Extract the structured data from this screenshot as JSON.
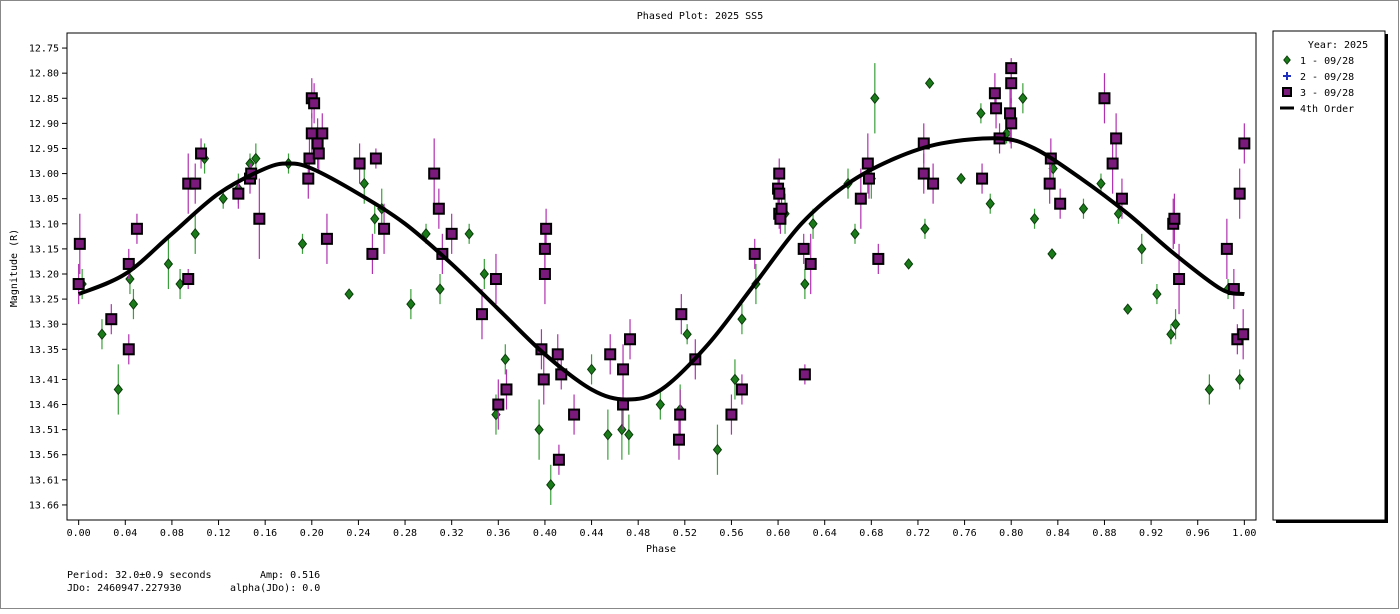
{
  "chart_data": {
    "type": "scatter",
    "title": "Phased Plot: 2025 SS5",
    "x_label": "Phase",
    "y_label": "Magnitude (R)",
    "y_inverted": true,
    "xlim": [
      -0.01,
      1.01
    ],
    "ylim": [
      12.72,
      13.69
    ],
    "xticks": [
      {
        "value": 0,
        "label": "0.00"
      },
      0.04,
      0.08,
      0.12,
      0.16,
      {
        "value": 0.2,
        "label": "0.20"
      },
      0.24,
      0.28,
      0.32,
      0.36,
      {
        "value": 0.4,
        "label": "0.40"
      },
      0.44,
      0.48,
      0.52,
      0.56,
      {
        "value": 0.6,
        "label": "0.60"
      },
      0.64,
      0.68,
      0.72,
      0.76,
      {
        "value": 0.8,
        "label": "0.80"
      },
      0.84,
      0.88,
      0.92,
      0.96,
      {
        "value": 1,
        "label": "1.00"
      }
    ],
    "yticks": [
      12.75,
      {
        "value": 12.8,
        "label": "12.80"
      },
      12.85,
      {
        "value": 12.9,
        "label": "12.90"
      },
      12.95,
      {
        "value": 13,
        "label": "13.00"
      },
      13.05,
      {
        "value": 13.1,
        "label": "13.10"
      },
      13.15,
      {
        "value": 13.2,
        "label": "13.20"
      },
      13.25,
      {
        "value": 13.3,
        "label": "13.30"
      },
      13.35,
      13.41,
      13.46,
      13.51,
      13.56,
      13.61,
      13.66
    ],
    "legend_title": "Year: 2025",
    "legend_position": "right",
    "series": [
      {
        "name": "1 - 09/28",
        "color": "#1a7a1a",
        "error_color": "#3aa03a",
        "marker": "diamond",
        "x": [
          0.003,
          0.02,
          0.034,
          0.044,
          0.047,
          0.077,
          0.087,
          0.1,
          0.108,
          0.124,
          0.137,
          0.147,
          0.152,
          0.18,
          0.192,
          0.232,
          0.245,
          0.254,
          0.26,
          0.285,
          0.298,
          0.31,
          0.335,
          0.348,
          0.358,
          0.366,
          0.395,
          0.405,
          0.44,
          0.454,
          0.466,
          0.472,
          0.499,
          0.516,
          0.522,
          0.548,
          0.563,
          0.569,
          0.581,
          0.606,
          0.623,
          0.63,
          0.66,
          0.666,
          0.68,
          0.683,
          0.712,
          0.726,
          0.73,
          0.757,
          0.774,
          0.782,
          0.796,
          0.81,
          0.82,
          0.835,
          0.836,
          0.862,
          0.877,
          0.892,
          0.9,
          0.912,
          0.925,
          0.937,
          0.941,
          0.97,
          0.986,
          0.996
        ],
        "values": [
          13.22,
          13.32,
          13.43,
          13.21,
          13.26,
          13.18,
          13.22,
          13.12,
          12.97,
          13.05,
          13.03,
          12.98,
          12.97,
          12.98,
          13.14,
          13.24,
          13.02,
          13.09,
          13.07,
          13.26,
          13.12,
          13.23,
          13.12,
          13.2,
          13.48,
          13.37,
          13.51,
          13.62,
          13.39,
          13.52,
          13.51,
          13.52,
          13.46,
          13.47,
          13.32,
          13.55,
          13.41,
          13.29,
          13.22,
          13.08,
          13.22,
          13.1,
          13.02,
          13.12,
          13.01,
          12.85,
          13.18,
          13.11,
          12.82,
          13.01,
          12.88,
          13.06,
          12.92,
          12.85,
          13.09,
          13.16,
          12.99,
          13.07,
          13.02,
          13.08,
          13.27,
          13.15,
          13.24,
          13.32,
          13.3,
          13.43,
          13.23,
          13.41
        ],
        "errors": [
          0.03,
          0.03,
          0.05,
          0.03,
          0.03,
          0.05,
          0.03,
          0.04,
          0.03,
          0.02,
          0.03,
          0.02,
          0.03,
          0.02,
          0.02,
          0.01,
          0.04,
          0.03,
          0.04,
          0.03,
          0.02,
          0.03,
          0.02,
          0.03,
          0.04,
          0.03,
          0.06,
          0.04,
          0.03,
          0.05,
          0.06,
          0.04,
          0.03,
          0.05,
          0.02,
          0.05,
          0.04,
          0.03,
          0.04,
          0.04,
          0.03,
          0.03,
          0.03,
          0.02,
          0.04,
          0.07,
          0.01,
          0.02,
          0.01,
          0.01,
          0.02,
          0.02,
          0.02,
          0.03,
          0.02,
          0.01,
          0.02,
          0.02,
          0.02,
          0.02,
          0.01,
          0.03,
          0.02,
          0.02,
          0.03,
          0.03,
          0.02,
          0.02
        ]
      },
      {
        "name": "2 - 09/28",
        "color": "#1f2fbf",
        "marker": "plus",
        "x": [],
        "values": [],
        "errors": []
      },
      {
        "name": "3 - 09/28",
        "color": "#7a1a7a",
        "error_color": "#b030b0",
        "marker": "square",
        "x": [
          0.001,
          0.0,
          0.028,
          0.043,
          0.043,
          0.05,
          0.094,
          0.094,
          0.1,
          0.105,
          0.137,
          0.147,
          0.148,
          0.155,
          0.197,
          0.198,
          0.2,
          0.2,
          0.202,
          0.205,
          0.206,
          0.209,
          0.213,
          0.241,
          0.252,
          0.255,
          0.262,
          0.305,
          0.309,
          0.312,
          0.32,
          0.346,
          0.358,
          0.36,
          0.367,
          0.397,
          0.399,
          0.4,
          0.4,
          0.401,
          0.411,
          0.412,
          0.414,
          0.425,
          0.456,
          0.467,
          0.467,
          0.473,
          0.515,
          0.516,
          0.517,
          0.529,
          0.56,
          0.569,
          0.58,
          0.6,
          0.601,
          0.601,
          0.601,
          0.602,
          0.603,
          0.622,
          0.623,
          0.628,
          0.671,
          0.677,
          0.678,
          0.686,
          0.725,
          0.725,
          0.733,
          0.775,
          0.786,
          0.787,
          0.79,
          0.8,
          0.8,
          0.799,
          0.8,
          0.833,
          0.834,
          0.842,
          0.88,
          0.887,
          0.89,
          0.895,
          0.939,
          0.94,
          0.944,
          0.985,
          0.991,
          0.994,
          0.996,
          0.999,
          1.0
        ],
        "values": [
          13.14,
          13.22,
          13.29,
          13.35,
          13.18,
          13.11,
          13.21,
          13.02,
          13.02,
          12.96,
          13.04,
          13.01,
          13.0,
          13.09,
          13.01,
          12.97,
          12.92,
          12.85,
          12.86,
          12.94,
          12.96,
          12.92,
          13.13,
          12.98,
          13.16,
          12.97,
          13.11,
          13.0,
          13.07,
          13.16,
          13.12,
          13.28,
          13.21,
          13.46,
          13.43,
          13.35,
          13.41,
          13.2,
          13.15,
          13.11,
          13.36,
          13.57,
          13.4,
          13.48,
          13.36,
          13.39,
          13.46,
          13.33,
          13.53,
          13.48,
          13.28,
          13.37,
          13.48,
          13.43,
          13.16,
          13.03,
          13.0,
          13.04,
          13.08,
          13.09,
          13.07,
          13.15,
          13.4,
          13.18,
          13.05,
          12.98,
          13.01,
          13.17,
          12.94,
          13.0,
          13.02,
          13.01,
          12.84,
          12.87,
          12.93,
          12.79,
          12.82,
          12.88,
          12.9,
          13.02,
          12.97,
          13.06,
          12.85,
          12.98,
          12.93,
          13.05,
          13.1,
          13.09,
          13.21,
          13.15,
          13.23,
          13.33,
          13.04,
          13.32,
          12.94
        ],
        "errors": [
          0.06,
          0.04,
          0.03,
          0.03,
          0.03,
          0.03,
          0.02,
          0.06,
          0.04,
          0.03,
          0.03,
          0.03,
          0.02,
          0.08,
          0.04,
          0.04,
          0.04,
          0.04,
          0.04,
          0.05,
          0.04,
          0.04,
          0.05,
          0.04,
          0.04,
          0.02,
          0.05,
          0.07,
          0.04,
          0.04,
          0.04,
          0.05,
          0.05,
          0.05,
          0.04,
          0.04,
          0.05,
          0.06,
          0.05,
          0.04,
          0.04,
          0.03,
          0.03,
          0.04,
          0.04,
          0.05,
          0.05,
          0.04,
          0.04,
          0.05,
          0.04,
          0.04,
          0.04,
          0.03,
          0.03,
          0.03,
          0.03,
          0.03,
          0.03,
          0.03,
          0.03,
          0.03,
          0.02,
          0.06,
          0.06,
          0.06,
          0.04,
          0.03,
          0.04,
          0.04,
          0.04,
          0.03,
          0.04,
          0.04,
          0.03,
          0.02,
          0.04,
          0.06,
          0.05,
          0.04,
          0.04,
          0.03,
          0.05,
          0.06,
          0.05,
          0.04,
          0.05,
          0.05,
          0.07,
          0.06,
          0.04,
          0.03,
          0.05,
          0.05,
          0.04
        ]
      },
      {
        "name": "4th Order",
        "color": "#000000",
        "marker": "line",
        "x": [
          0,
          0.04,
          0.08,
          0.12,
          0.16,
          0.18,
          0.2,
          0.24,
          0.28,
          0.32,
          0.36,
          0.4,
          0.44,
          0.47,
          0.5,
          0.54,
          0.58,
          0.62,
          0.66,
          0.7,
          0.74,
          0.79,
          0.82,
          0.86,
          0.9,
          0.94,
          0.98,
          1
        ],
        "values": [
          13.24,
          13.2,
          13.12,
          13.04,
          12.99,
          12.98,
          12.99,
          13.04,
          13.1,
          13.18,
          13.27,
          13.36,
          13.43,
          13.45,
          13.43,
          13.34,
          13.22,
          13.1,
          13.02,
          12.97,
          12.94,
          12.93,
          12.95,
          13.01,
          13.08,
          13.16,
          13.23,
          13.24
        ]
      }
    ],
    "annotations": [
      "Period: 32.0±0.9 seconds",
      "Amp: 0.516",
      "JDo: 2460947.227930",
      "alpha(JDo): 0.0"
    ]
  }
}
